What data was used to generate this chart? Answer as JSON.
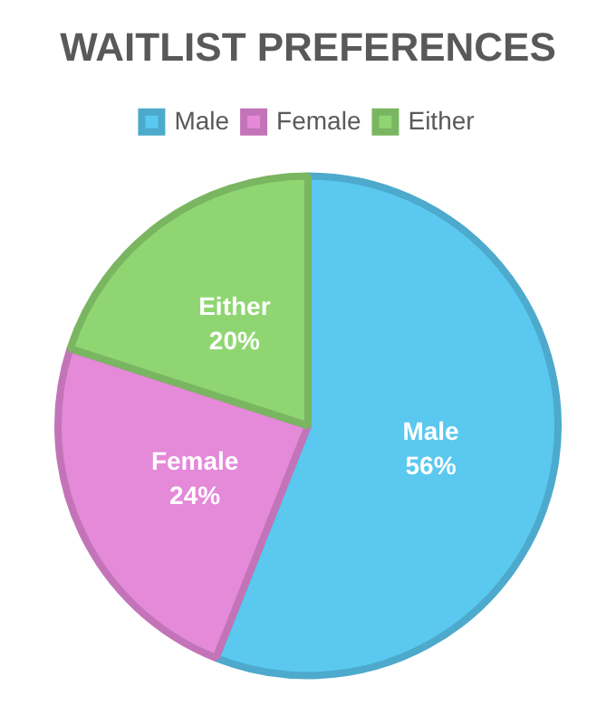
{
  "chart_data": {
    "type": "pie",
    "title": "WAITLIST PREFERENCES",
    "categories": [
      "Male",
      "Female",
      "Either"
    ],
    "values": [
      56,
      24,
      20
    ],
    "colors": [
      "#5bc8f0",
      "#e589d9",
      "#8fd672"
    ],
    "value_labels": [
      "56%",
      "24%",
      "20%"
    ],
    "legend": "top"
  }
}
